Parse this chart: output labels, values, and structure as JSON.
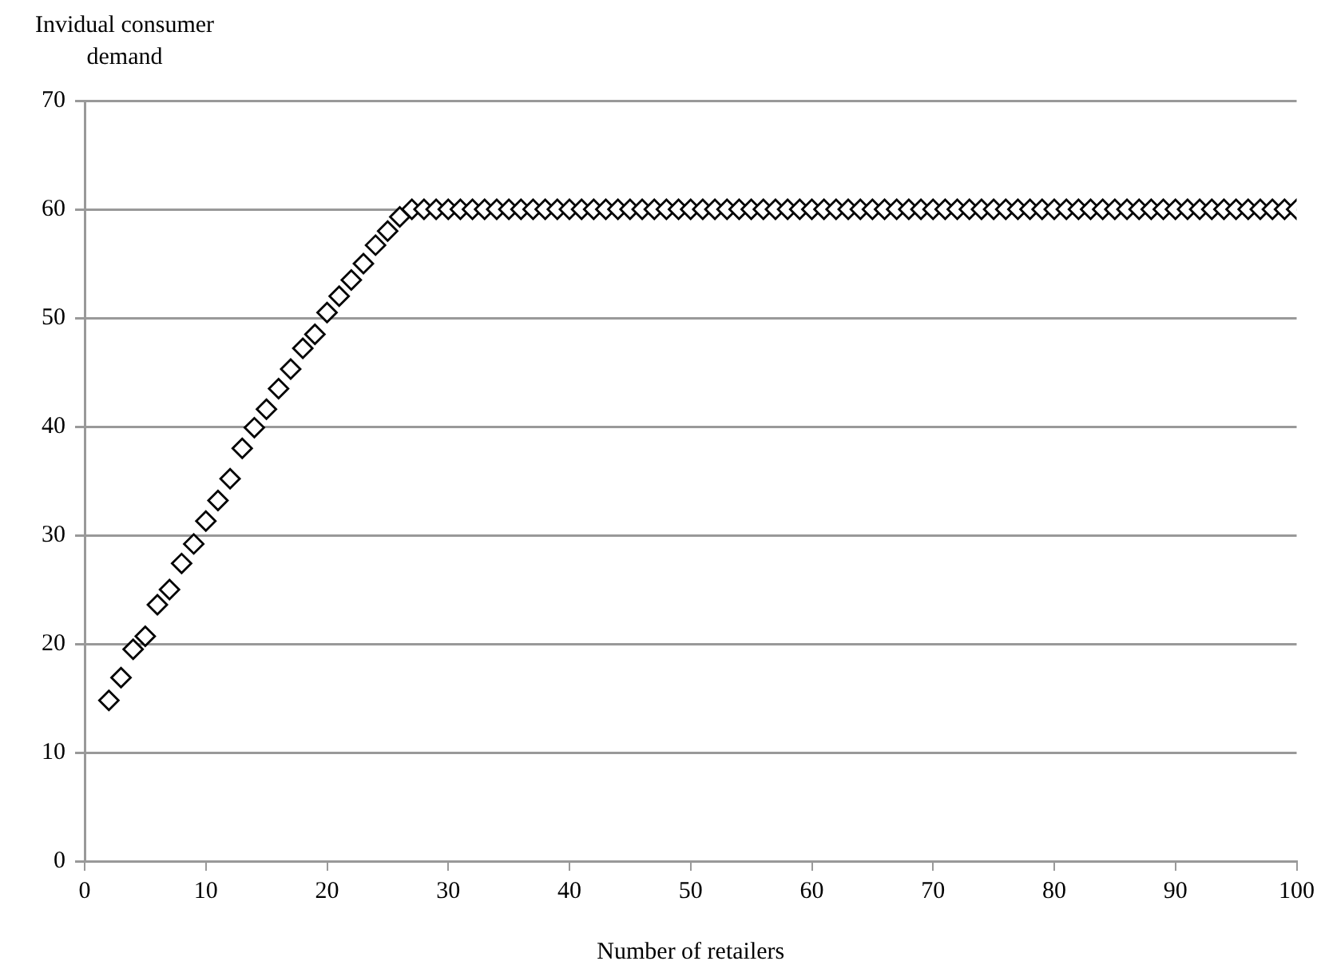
{
  "chart_data": {
    "type": "scatter",
    "ylabel": "Invidual consumer demand",
    "xlabel": "Number of retailers",
    "x": [
      2,
      3,
      4,
      5,
      6,
      7,
      8,
      9,
      10,
      11,
      12,
      13,
      14,
      15,
      16,
      17,
      18,
      19,
      20,
      21,
      22,
      23,
      24,
      25,
      26,
      27,
      28,
      29,
      30,
      31,
      32,
      33,
      34,
      35,
      36,
      37,
      38,
      39,
      40,
      41,
      42,
      43,
      44,
      45,
      46,
      47,
      48,
      49,
      50,
      51,
      52,
      53,
      54,
      55,
      56,
      57,
      58,
      59,
      60,
      61,
      62,
      63,
      64,
      65,
      66,
      67,
      68,
      69,
      70,
      71,
      72,
      73,
      74,
      75,
      76,
      77,
      78,
      79,
      80,
      81,
      82,
      83,
      84,
      85,
      86,
      87,
      88,
      89,
      90,
      91,
      92,
      93,
      94,
      95,
      96,
      97,
      98,
      99,
      100
    ],
    "values": [
      14.8,
      16.9,
      19.5,
      20.7,
      23.6,
      25,
      27.4,
      29.2,
      31.3,
      33.2,
      35.2,
      38,
      39.9,
      41.6,
      43.5,
      45.3,
      47.2,
      48.5,
      50.5,
      52,
      53.5,
      55,
      56.7,
      58,
      59.3,
      60,
      60,
      60,
      60,
      60,
      60,
      60,
      60,
      60,
      60,
      60,
      60,
      60,
      60,
      60,
      60,
      60,
      60,
      60,
      60,
      60,
      60,
      60,
      60,
      60,
      60,
      60,
      60,
      60,
      60,
      60,
      60,
      60,
      60,
      60,
      60,
      60,
      60,
      60,
      60,
      60,
      60,
      60,
      60,
      60,
      60,
      60,
      60,
      60,
      60,
      60,
      60,
      60,
      60,
      60,
      60,
      60,
      60,
      60,
      60,
      60,
      60,
      60,
      60,
      60,
      60,
      60,
      60,
      60,
      60,
      60,
      60,
      60,
      60
    ],
    "color": "#000000",
    "marker": "diamond",
    "grid": "y",
    "legend": false,
    "xlim": [
      0,
      100
    ],
    "xticks": [
      0,
      10,
      20,
      30,
      40,
      50,
      60,
      70,
      80,
      90,
      100
    ],
    "ylim": [
      0,
      70
    ],
    "yticks": [
      0,
      10,
      20,
      30,
      40,
      50,
      60,
      70
    ]
  }
}
